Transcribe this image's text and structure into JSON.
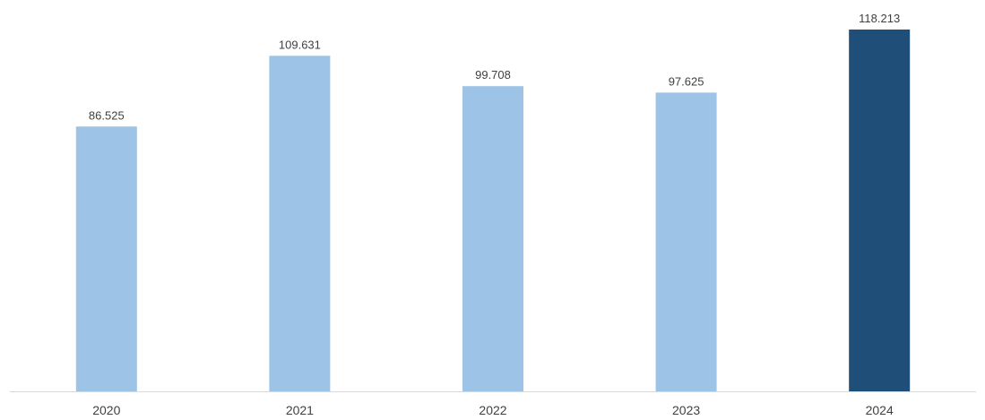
{
  "chart_data": {
    "type": "bar",
    "categories": [
      "2020",
      "2021",
      "2022",
      "2023",
      "2024"
    ],
    "values": [
      86.525,
      109.631,
      99.708,
      97.625,
      118.213
    ],
    "value_labels": [
      "86.525",
      "109.631",
      "99.708",
      "97.625",
      "118.213"
    ],
    "colors": [
      "#9DC3E6",
      "#9DC3E6",
      "#9DC3E6",
      "#9DC3E6",
      "#1F4E79"
    ],
    "highlight_category": "2024",
    "title": "",
    "xlabel": "",
    "ylabel": "",
    "ylim": [
      0,
      118.213
    ],
    "grid": false,
    "legend": "none",
    "axis_color": "#D9D9D9",
    "label_color": "#404040"
  }
}
